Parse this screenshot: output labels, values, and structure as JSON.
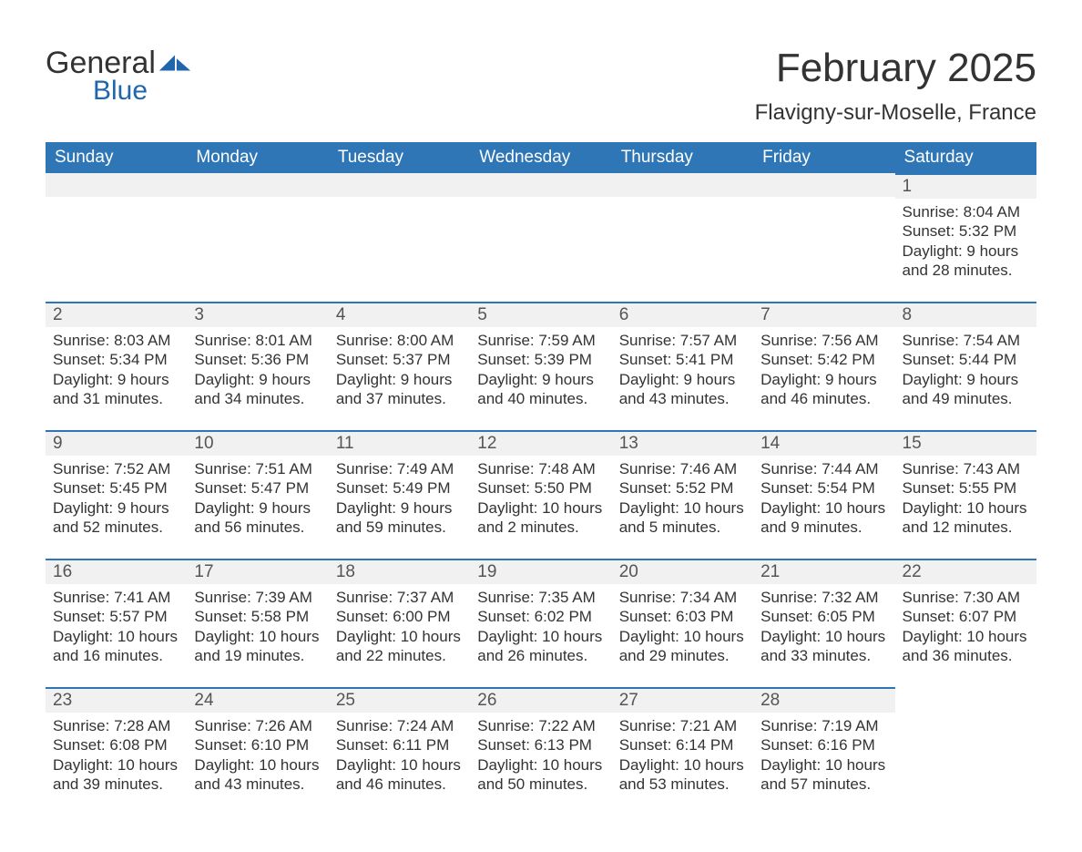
{
  "logo": {
    "general": "General",
    "blue": "Blue",
    "mark_color": "#2066ad",
    "text_color": "#333333"
  },
  "title": "February 2025",
  "location": "Flavigny-sur-Moselle, France",
  "colors": {
    "header_bg": "#2f76b6",
    "header_text": "#ffffff",
    "daynum_bg": "#f1f1f1",
    "daynum_border": "#2f76b6",
    "body_text": "#333333",
    "page_bg": "#ffffff"
  },
  "fonts": {
    "title_size_pt": 33,
    "location_size_pt": 18,
    "header_size_pt": 14,
    "daynum_size_pt": 14,
    "body_size_pt": 13
  },
  "weekdays": [
    "Sunday",
    "Monday",
    "Tuesday",
    "Wednesday",
    "Thursday",
    "Friday",
    "Saturday"
  ],
  "grid": {
    "rows": 5,
    "cols": 7,
    "first_day_col": 6
  },
  "days": [
    {
      "n": 1,
      "sunrise": "8:04 AM",
      "sunset": "5:32 PM",
      "daylight": "9 hours and 28 minutes."
    },
    {
      "n": 2,
      "sunrise": "8:03 AM",
      "sunset": "5:34 PM",
      "daylight": "9 hours and 31 minutes."
    },
    {
      "n": 3,
      "sunrise": "8:01 AM",
      "sunset": "5:36 PM",
      "daylight": "9 hours and 34 minutes."
    },
    {
      "n": 4,
      "sunrise": "8:00 AM",
      "sunset": "5:37 PM",
      "daylight": "9 hours and 37 minutes."
    },
    {
      "n": 5,
      "sunrise": "7:59 AM",
      "sunset": "5:39 PM",
      "daylight": "9 hours and 40 minutes."
    },
    {
      "n": 6,
      "sunrise": "7:57 AM",
      "sunset": "5:41 PM",
      "daylight": "9 hours and 43 minutes."
    },
    {
      "n": 7,
      "sunrise": "7:56 AM",
      "sunset": "5:42 PM",
      "daylight": "9 hours and 46 minutes."
    },
    {
      "n": 8,
      "sunrise": "7:54 AM",
      "sunset": "5:44 PM",
      "daylight": "9 hours and 49 minutes."
    },
    {
      "n": 9,
      "sunrise": "7:52 AM",
      "sunset": "5:45 PM",
      "daylight": "9 hours and 52 minutes."
    },
    {
      "n": 10,
      "sunrise": "7:51 AM",
      "sunset": "5:47 PM",
      "daylight": "9 hours and 56 minutes."
    },
    {
      "n": 11,
      "sunrise": "7:49 AM",
      "sunset": "5:49 PM",
      "daylight": "9 hours and 59 minutes."
    },
    {
      "n": 12,
      "sunrise": "7:48 AM",
      "sunset": "5:50 PM",
      "daylight": "10 hours and 2 minutes."
    },
    {
      "n": 13,
      "sunrise": "7:46 AM",
      "sunset": "5:52 PM",
      "daylight": "10 hours and 5 minutes."
    },
    {
      "n": 14,
      "sunrise": "7:44 AM",
      "sunset": "5:54 PM",
      "daylight": "10 hours and 9 minutes."
    },
    {
      "n": 15,
      "sunrise": "7:43 AM",
      "sunset": "5:55 PM",
      "daylight": "10 hours and 12 minutes."
    },
    {
      "n": 16,
      "sunrise": "7:41 AM",
      "sunset": "5:57 PM",
      "daylight": "10 hours and 16 minutes."
    },
    {
      "n": 17,
      "sunrise": "7:39 AM",
      "sunset": "5:58 PM",
      "daylight": "10 hours and 19 minutes."
    },
    {
      "n": 18,
      "sunrise": "7:37 AM",
      "sunset": "6:00 PM",
      "daylight": "10 hours and 22 minutes."
    },
    {
      "n": 19,
      "sunrise": "7:35 AM",
      "sunset": "6:02 PM",
      "daylight": "10 hours and 26 minutes."
    },
    {
      "n": 20,
      "sunrise": "7:34 AM",
      "sunset": "6:03 PM",
      "daylight": "10 hours and 29 minutes."
    },
    {
      "n": 21,
      "sunrise": "7:32 AM",
      "sunset": "6:05 PM",
      "daylight": "10 hours and 33 minutes."
    },
    {
      "n": 22,
      "sunrise": "7:30 AM",
      "sunset": "6:07 PM",
      "daylight": "10 hours and 36 minutes."
    },
    {
      "n": 23,
      "sunrise": "7:28 AM",
      "sunset": "6:08 PM",
      "daylight": "10 hours and 39 minutes."
    },
    {
      "n": 24,
      "sunrise": "7:26 AM",
      "sunset": "6:10 PM",
      "daylight": "10 hours and 43 minutes."
    },
    {
      "n": 25,
      "sunrise": "7:24 AM",
      "sunset": "6:11 PM",
      "daylight": "10 hours and 46 minutes."
    },
    {
      "n": 26,
      "sunrise": "7:22 AM",
      "sunset": "6:13 PM",
      "daylight": "10 hours and 50 minutes."
    },
    {
      "n": 27,
      "sunrise": "7:21 AM",
      "sunset": "6:14 PM",
      "daylight": "10 hours and 53 minutes."
    },
    {
      "n": 28,
      "sunrise": "7:19 AM",
      "sunset": "6:16 PM",
      "daylight": "10 hours and 57 minutes."
    }
  ],
  "labels": {
    "sunrise": "Sunrise: ",
    "sunset": "Sunset: ",
    "daylight": "Daylight: "
  }
}
